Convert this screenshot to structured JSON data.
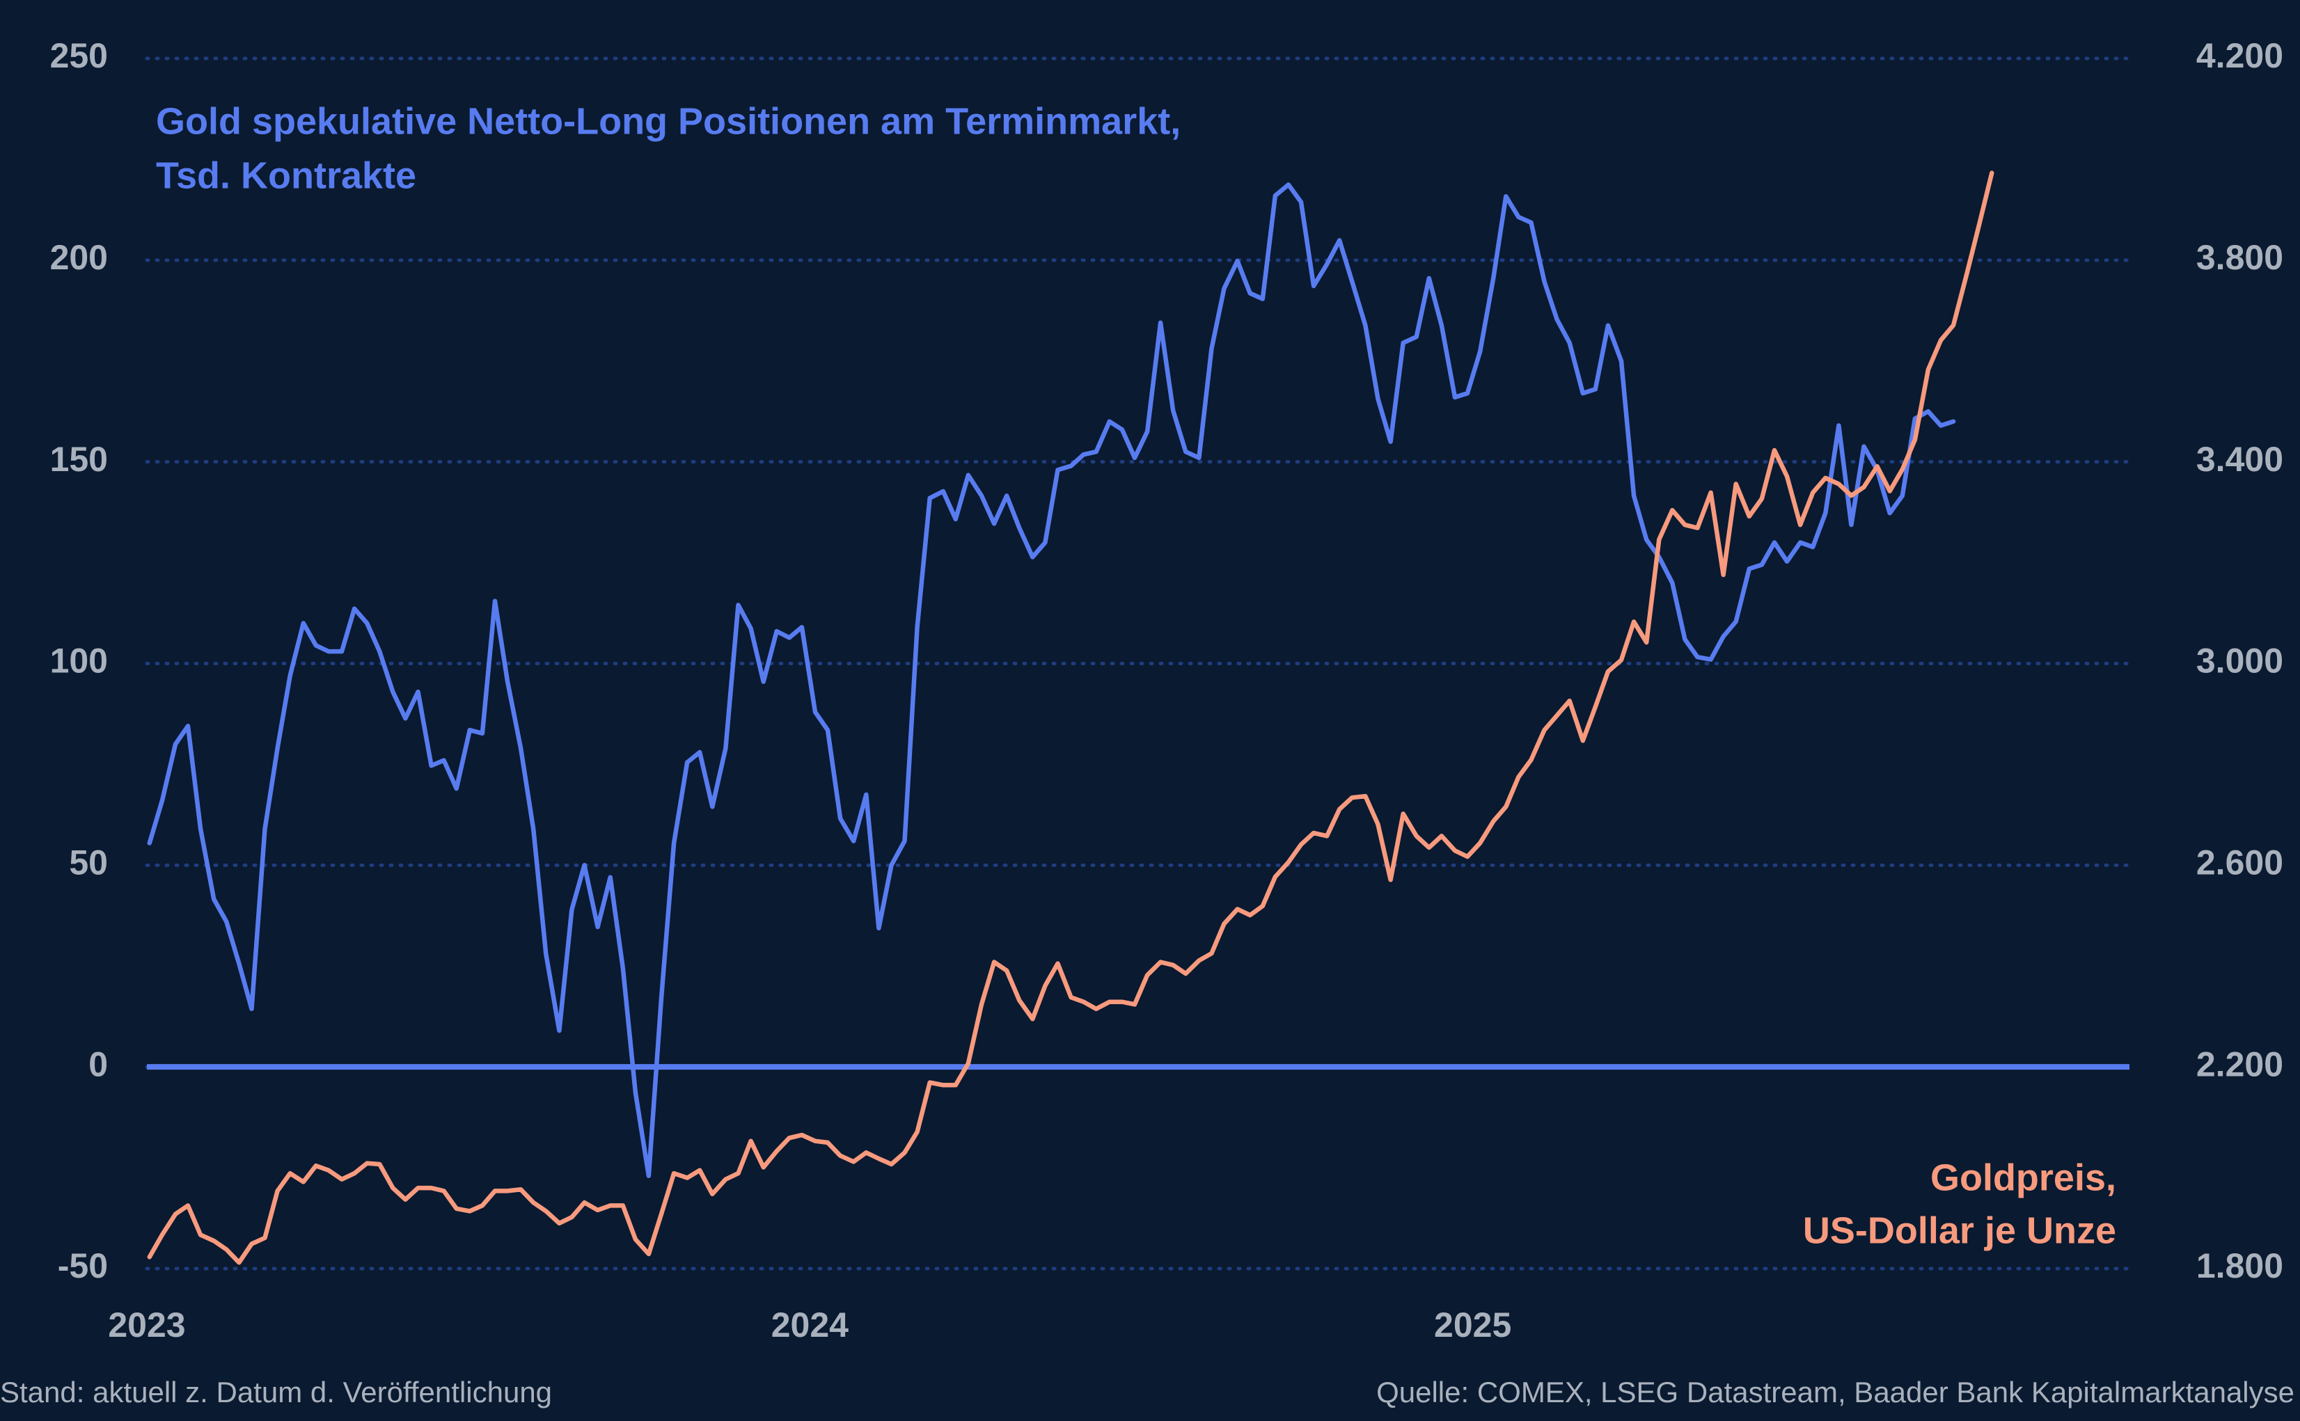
{
  "chart_data": {
    "type": "line",
    "ylabel": [
      "Gold spekulative Netto-Long Positionen am Terminmarkt,",
      "Tsd. Kontrakte"
    ],
    "y2label": [
      "Goldpreis,",
      "US-Dollar je Unze"
    ],
    "note": "Stand: aktuell z. Datum d. Veröffentlichung",
    "source": "Quelle: COMEX, LSEG Datastream, Baader Bank Kapitalmarktanalyse",
    "xlim": [
      2023,
      2026
    ],
    "xticks": [
      2023,
      2024,
      2025
    ],
    "ylim": [
      -50,
      250
    ],
    "yticks": [
      -50,
      0,
      50,
      100,
      150,
      200,
      250
    ],
    "y2lim": [
      1800,
      4200
    ],
    "y2ticks": [
      {
        "value": 1800,
        "label": "1.800"
      },
      {
        "value": 2200,
        "label": "2.200"
      },
      {
        "value": 2600,
        "label": "2.600"
      },
      {
        "value": 3000,
        "label": "3.000"
      },
      {
        "value": 3400,
        "label": "3.400"
      },
      {
        "value": 3800,
        "label": "3.800"
      },
      {
        "value": 4200,
        "label": "4.200"
      }
    ],
    "grid": true,
    "x": [
      2023.004,
      2023.023,
      2023.043,
      2023.062,
      2023.081,
      2023.101,
      2023.12,
      2023.139,
      2023.158,
      2023.178,
      2023.197,
      2023.216,
      2023.236,
      2023.255,
      2023.274,
      2023.294,
      2023.313,
      2023.332,
      2023.351,
      2023.371,
      2023.39,
      2023.409,
      2023.429,
      2023.448,
      2023.467,
      2023.487,
      2023.506,
      2023.525,
      2023.544,
      2023.564,
      2023.583,
      2023.602,
      2023.622,
      2023.641,
      2023.66,
      2023.68,
      2023.699,
      2023.718,
      2023.737,
      2023.757,
      2023.776,
      2023.795,
      2023.815,
      2023.834,
      2023.853,
      2023.873,
      2023.892,
      2023.911,
      2023.93,
      2023.95,
      2023.969,
      2023.988,
      2024.008,
      2024.027,
      2024.046,
      2024.066,
      2024.085,
      2024.104,
      2024.123,
      2024.143,
      2024.162,
      2024.181,
      2024.201,
      2024.22,
      2024.239,
      2024.259,
      2024.278,
      2024.297,
      2024.316,
      2024.336,
      2024.355,
      2024.374,
      2024.394,
      2024.413,
      2024.432,
      2024.452,
      2024.471,
      2024.49,
      2024.509,
      2024.529,
      2024.548,
      2024.567,
      2024.587,
      2024.606,
      2024.625,
      2024.645,
      2024.664,
      2024.683,
      2024.702,
      2024.722,
      2024.741,
      2024.76,
      2024.78,
      2024.799,
      2024.818,
      2024.838,
      2024.857,
      2024.876,
      2024.895,
      2024.915,
      2024.934,
      2024.953,
      2024.973,
      2024.992,
      2025.011,
      2025.031,
      2025.05,
      2025.069,
      2025.088,
      2025.108,
      2025.127,
      2025.146,
      2025.166,
      2025.185,
      2025.204,
      2025.224,
      2025.243,
      2025.262,
      2025.281,
      2025.301,
      2025.32,
      2025.339,
      2025.359,
      2025.378,
      2025.397,
      2025.417,
      2025.436,
      2025.455,
      2025.474,
      2025.494,
      2025.513,
      2025.532,
      2025.552,
      2025.571,
      2025.59,
      2025.61,
      2025.629,
      2025.648,
      2025.667,
      2025.687,
      2025.706,
      2025.725,
      2025.745,
      2025.764,
      2025.783
    ],
    "series": [
      {
        "color": "#587cf0",
        "values": [
          55.5,
          66,
          80,
          84.5,
          59,
          41.6,
          36,
          25.6,
          14.4,
          59,
          79,
          97,
          110,
          104.5,
          103,
          103,
          113.6,
          110,
          103,
          93,
          86.4,
          93,
          74.7,
          76,
          69,
          83.5,
          82.7,
          115.5,
          95.5,
          79,
          59,
          28,
          9,
          39,
          50,
          34.7,
          47,
          24.5,
          -6.4,
          -27,
          17,
          55.5,
          75.5,
          78,
          64.5,
          79,
          114.5,
          108.7,
          95.5,
          108,
          106.4,
          109,
          88,
          83.5,
          61.6,
          56,
          67.5,
          34.4,
          50,
          56,
          109,
          141,
          142.7,
          135.8,
          146.7,
          141.6,
          134.7,
          141.6,
          133.6,
          126.4,
          130,
          148,
          149,
          151.8,
          152.5,
          160,
          158,
          151,
          157.5,
          184.5,
          162.7,
          152.5,
          151,
          178,
          193,
          199.8,
          191.8,
          190.4,
          216,
          218.7,
          214.4,
          193.6,
          199,
          204.9,
          194.7,
          183.8,
          165.6,
          155,
          179.5,
          181,
          195.5,
          183.8,
          166,
          167,
          177.3,
          195.5,
          215.8,
          210.7,
          209.3,
          194.7,
          185.3,
          179.5,
          167,
          168,
          183.8,
          175,
          141.6,
          130.7,
          126.4,
          120,
          106,
          101.6,
          101,
          106.7,
          110.4,
          123.5,
          124.5,
          130,
          125.3,
          130,
          128.9,
          137.3,
          159,
          134.4,
          153.8,
          148,
          137.3,
          141.6,
          160.7,
          162.5,
          159,
          160,
          null,
          null,
          null
        ]
      },
      {
        "color": "#f79a7e",
        "axis": "y2",
        "values": [
          1823,
          1867,
          1908,
          1925,
          1867,
          1855,
          1838,
          1812,
          1849,
          1861,
          1954,
          1989,
          1972,
          2004,
          1995,
          1977,
          1989,
          2009,
          2007,
          1960,
          1937,
          1960,
          1960,
          1954,
          1919,
          1914,
          1925,
          1954,
          1954,
          1957,
          1931,
          1914,
          1890,
          1902,
          1931,
          1916,
          1925,
          1925,
          1858,
          1829,
          1908,
          1989,
          1980,
          1995,
          1948,
          1977,
          1989,
          2053,
          2001,
          2033,
          2059,
          2065,
          2053,
          2050,
          2024,
          2012,
          2030,
          2018,
          2007,
          2030,
          2071,
          2169,
          2164,
          2164,
          2207,
          2324,
          2408,
          2391,
          2332,
          2295,
          2361,
          2405,
          2338,
          2329,
          2315,
          2329,
          2329,
          2324,
          2382,
          2408,
          2402,
          2385,
          2411,
          2425,
          2484,
          2513,
          2501,
          2519,
          2577,
          2606,
          2641,
          2664,
          2658,
          2711,
          2734,
          2737,
          2681,
          2571,
          2702,
          2658,
          2635,
          2658,
          2629,
          2617,
          2644,
          2687,
          2716,
          2775,
          2809,
          2868,
          2897,
          2926,
          2847,
          2914,
          2984,
          3007,
          3083,
          3042,
          3246,
          3304,
          3275,
          3269,
          3339,
          3176,
          3356,
          3292,
          3327,
          3423,
          3371,
          3275,
          3339,
          3368,
          3356,
          3333,
          3350,
          3391,
          3342,
          3385,
          3444,
          3583,
          3641,
          3671,
          3772,
          3871,
          3973
        ]
      }
    ]
  }
}
